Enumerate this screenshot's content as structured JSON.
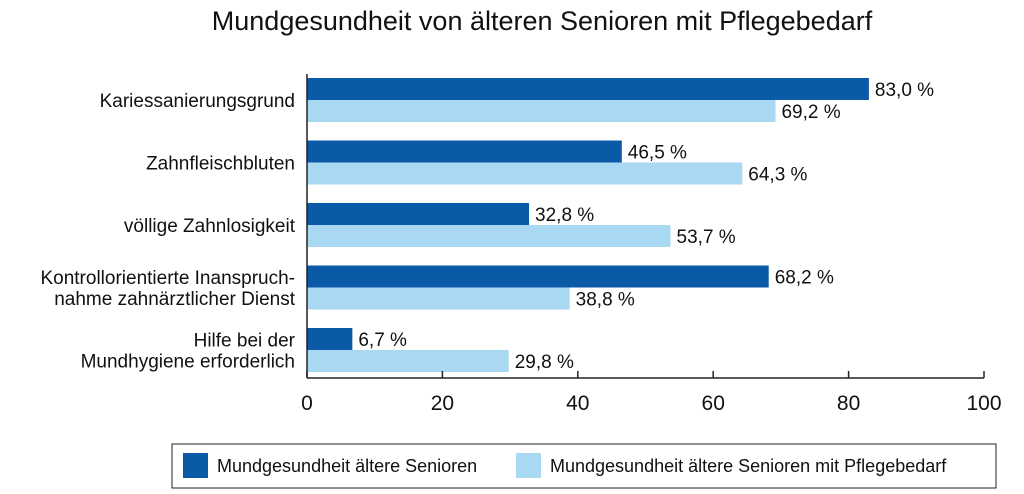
{
  "chart_data": {
    "type": "bar",
    "orientation": "horizontal",
    "title": "Mundgesundheit von älteren Senioren mit Pflegebedarf",
    "categories": [
      [
        "Kariessanierungsgrund"
      ],
      [
        "Zahnfleischbluten"
      ],
      [
        "völlige Zahnlosigkeit"
      ],
      [
        "Kontrollorientierte Inanspruch-",
        "nahme zahnärztlicher Dienst"
      ],
      [
        "Hilfe bei der",
        "Mundhygiene erforderlich"
      ]
    ],
    "series": [
      {
        "name": "Mundgesundheit ältere Senioren",
        "color": "#0a5aa8",
        "values": [
          83.0,
          46.5,
          32.8,
          68.2,
          6.7
        ],
        "labels": [
          "83,0 %",
          "46,5 %",
          "32,8 %",
          "68,2 %",
          "6,7 %"
        ]
      },
      {
        "name": "Mundgesundheit ältere Senioren mit Pflegebedarf",
        "color": "#a9d8f2",
        "values": [
          69.2,
          64.3,
          53.7,
          38.8,
          29.8
        ],
        "labels": [
          "69,2 %",
          "64,3 %",
          "53,7 %",
          "38,8 %",
          "29,8 %"
        ]
      }
    ],
    "xlim": [
      0,
      100
    ],
    "xticks": [
      0,
      20,
      40,
      60,
      80,
      100
    ],
    "xticklabels": [
      "0",
      "20",
      "40",
      "60",
      "80",
      "100"
    ],
    "xlabel": "",
    "ylabel": "",
    "grid": false,
    "legend_position": "bottom"
  }
}
